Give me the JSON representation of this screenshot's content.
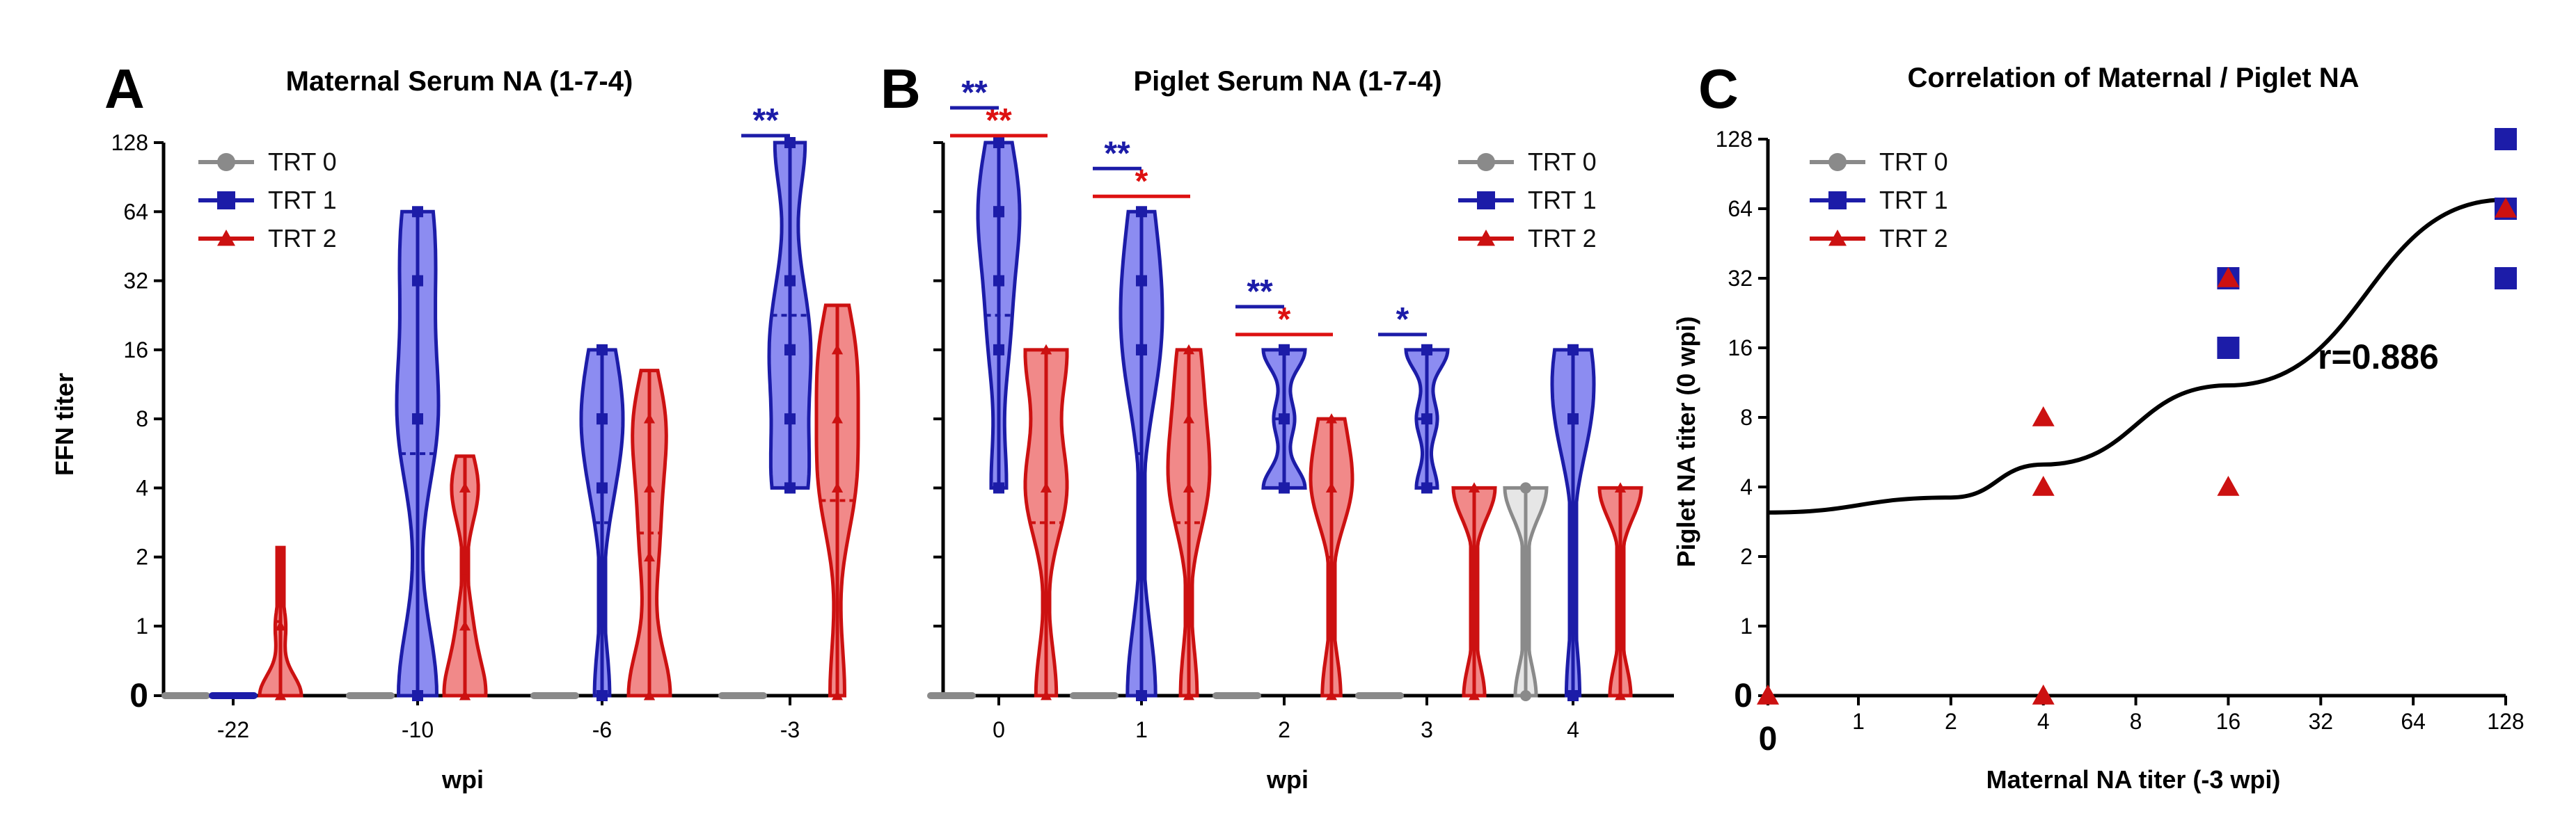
{
  "colors": {
    "trt0": "#8a8a8a",
    "trt1": "#1c1ca8",
    "trt2": "#cc1111",
    "trt0_fill": "#e2e2e2",
    "trt1_fill": "#7878ee",
    "trt2_fill": "#ef7474",
    "sig_blue": "#1c1ca8",
    "sig_red": "#dd1111"
  },
  "chart_data": [
    {
      "panel": "A",
      "type": "violin",
      "title": "Maternal Serum NA (1-7-4)",
      "xlabel": "wpi",
      "ylabel": "FFN titer",
      "y_ticks": [
        "0",
        "1",
        "2",
        "4",
        "8",
        "16",
        "32",
        "64",
        "128"
      ],
      "y_scale": "log2, 0 shown at bottom",
      "legend": [
        "TRT 0",
        "TRT 1",
        "TRT 2"
      ],
      "categories": [
        "-22",
        "-10",
        "-6",
        "-3"
      ],
      "series": [
        {
          "name": "TRT 0",
          "groups": [
            {
              "x": "-22",
              "points": [
                0,
                0,
                0,
                0,
                0
              ],
              "max": 0
            },
            {
              "x": "-10",
              "points": [
                0,
                0,
                0,
                0,
                0
              ],
              "max": 0
            },
            {
              "x": "-6",
              "points": [
                0,
                0,
                0,
                0,
                0
              ],
              "max": 0
            },
            {
              "x": "-3",
              "points": [
                0,
                0,
                0,
                0,
                0
              ],
              "max": 0
            }
          ]
        },
        {
          "name": "TRT 1",
          "groups": [
            {
              "x": "-22",
              "points": [
                0,
                0,
                0,
                0,
                0
              ],
              "max": 0
            },
            {
              "x": "-10",
              "points": [
                0,
                0,
                8,
                8,
                32,
                64
              ],
              "max": 64
            },
            {
              "x": "-6",
              "points": [
                0,
                4,
                8,
                8,
                16
              ],
              "max": 16
            },
            {
              "x": "-3",
              "points": [
                4,
                4,
                8,
                16,
                16,
                32,
                128,
                128
              ],
              "max": 128
            }
          ]
        },
        {
          "name": "TRT 2",
          "groups": [
            {
              "x": "-22",
              "points": [
                0,
                0,
                0,
                0,
                1
              ],
              "max": 2.2
            },
            {
              "x": "-10",
              "points": [
                0,
                0,
                0,
                1,
                4,
                4
              ],
              "max": 5.5
            },
            {
              "x": "-6",
              "points": [
                0,
                0,
                0,
                2,
                4,
                8,
                8
              ],
              "max": 13
            },
            {
              "x": "-3",
              "points": [
                0,
                4,
                4,
                8,
                16,
                16
              ],
              "max": 25
            }
          ]
        }
      ],
      "significance": [
        {
          "x": "-3",
          "label": "**",
          "color": "blue"
        }
      ]
    },
    {
      "panel": "B",
      "type": "violin",
      "title": "Piglet Serum NA (1-7-4)",
      "xlabel": "wpi",
      "legend": [
        "TRT 0",
        "TRT 1",
        "TRT 2"
      ],
      "categories": [
        "0",
        "1",
        "2",
        "3",
        "4"
      ],
      "series": [
        {
          "name": "TRT 0",
          "groups": [
            {
              "x": "0",
              "points": [
                0,
                0,
                0,
                0,
                0
              ],
              "max": 0
            },
            {
              "x": "1",
              "points": [
                0,
                0,
                0,
                0,
                0
              ],
              "max": 0
            },
            {
              "x": "2",
              "points": [
                0,
                0,
                0,
                0,
                0
              ],
              "max": 0
            },
            {
              "x": "3",
              "points": [
                0,
                0,
                0,
                0,
                0
              ],
              "max": 0
            },
            {
              "x": "4",
              "points": [
                0,
                4,
                4
              ],
              "max": 4
            }
          ]
        },
        {
          "name": "TRT 1",
          "groups": [
            {
              "x": "0",
              "points": [
                4,
                16,
                32,
                64,
                64,
                128
              ],
              "max": 128
            },
            {
              "x": "1",
              "points": [
                0,
                0,
                16,
                16,
                32,
                64
              ],
              "max": 64
            },
            {
              "x": "2",
              "points": [
                4,
                4,
                8,
                16,
                16
              ],
              "max": 16
            },
            {
              "x": "3",
              "points": [
                4,
                8,
                16,
                16
              ],
              "max": 16
            },
            {
              "x": "4",
              "points": [
                0,
                8,
                8,
                16,
                16
              ],
              "max": 16
            }
          ]
        },
        {
          "name": "TRT 2",
          "groups": [
            {
              "x": "0",
              "points": [
                0,
                4,
                4,
                16,
                16
              ],
              "max": 16
            },
            {
              "x": "1",
              "points": [
                0,
                4,
                4,
                8,
                16
              ],
              "max": 16
            },
            {
              "x": "2",
              "points": [
                0,
                4,
                4,
                8
              ],
              "max": 8
            },
            {
              "x": "3",
              "points": [
                0,
                4,
                4
              ],
              "max": 4
            },
            {
              "x": "4",
              "points": [
                0,
                4,
                4
              ],
              "max": 4
            }
          ]
        }
      ],
      "significance": [
        {
          "x": "0",
          "label": "**",
          "color": "red"
        },
        {
          "x": "0",
          "label": "**",
          "color": "blue"
        },
        {
          "x": "1",
          "label": "*",
          "color": "red"
        },
        {
          "x": "1",
          "label": "**",
          "color": "blue"
        },
        {
          "x": "2",
          "label": "*",
          "color": "red"
        },
        {
          "x": "2",
          "label": "**",
          "color": "blue"
        },
        {
          "x": "3",
          "label": "*",
          "color": "blue"
        }
      ]
    },
    {
      "panel": "C",
      "type": "scatter",
      "title": "Correlation of Maternal / Piglet NA",
      "xlabel": "Maternal NA titer (-3 wpi)",
      "ylabel": "Piglet NA titer (0 wpi)",
      "x_ticks": [
        "0",
        "1",
        "2",
        "4",
        "8",
        "16",
        "32",
        "64",
        "128"
      ],
      "y_ticks": [
        "0",
        "1",
        "2",
        "4",
        "8",
        "16",
        "32",
        "64",
        "128"
      ],
      "legend": [
        "TRT 0",
        "TRT 1",
        "TRT 2"
      ],
      "series": [
        {
          "name": "TRT 1",
          "x": [
            16,
            16,
            128,
            128,
            128
          ],
          "y": [
            32,
            16,
            128,
            64,
            32
          ]
        },
        {
          "name": "TRT 2",
          "x": [
            0,
            4,
            4,
            4,
            16,
            16,
            128
          ],
          "y": [
            0,
            8,
            4,
            0,
            32,
            4,
            64
          ]
        }
      ],
      "fit_curve": {
        "x": [
          0,
          2,
          4,
          16,
          128
        ],
        "y": [
          3.1,
          3.6,
          5,
          11,
          70
        ]
      },
      "annotation": "r=0.886"
    }
  ]
}
